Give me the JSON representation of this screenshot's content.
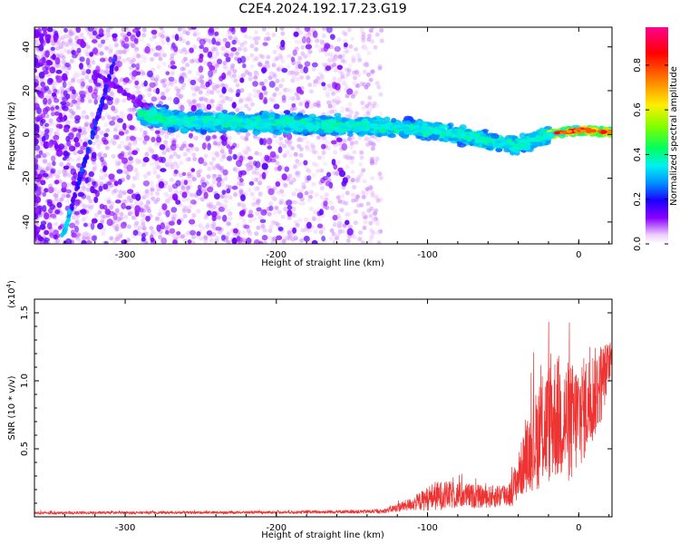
{
  "title": "C2E4.2024.192.17.23.G19",
  "chart_data": [
    {
      "type": "heatmap",
      "xlabel": "Height of straight line (km)",
      "ylabel": "Frequency (Hz)",
      "xlim": [
        -360,
        22
      ],
      "ylim": [
        -50,
        49
      ],
      "xticks": [
        -300,
        -200,
        -100,
        0
      ],
      "yticks": [
        -40,
        -20,
        0,
        20,
        40
      ],
      "colorbar": {
        "label": "Normalized spectral amplitude",
        "range": [
          0,
          0.97
        ],
        "ticks": [
          0.0,
          0.2,
          0.4,
          0.6,
          0.8
        ]
      },
      "features": {
        "diagonal_ridge": {
          "x_start": -341,
          "y_start": -46,
          "x_end": -307,
          "y_end": 34
        },
        "secondary_diagonal": {
          "x_start": -320,
          "y_start": 28,
          "x_end": -285,
          "y_end": 12
        },
        "main_ridge": [
          {
            "x": -290,
            "y": 9
          },
          {
            "x": -260,
            "y": 6
          },
          {
            "x": -200,
            "y": 5
          },
          {
            "x": -150,
            "y": 4
          },
          {
            "x": -110,
            "y": 3
          },
          {
            "x": -80,
            "y": 0
          },
          {
            "x": -60,
            "y": -3
          },
          {
            "x": -40,
            "y": -5
          },
          {
            "x": -20,
            "y": 0
          },
          {
            "x": 0,
            "y": 2
          },
          {
            "x": 22,
            "y": 1
          }
        ],
        "noise_region_x_max": -130
      }
    },
    {
      "type": "line",
      "xlabel": "Height of straight line (km)",
      "ylabel": "SNR (10 * v/v)",
      "multiplier": "(x10",
      "multiplier_exp": "4",
      "xlim": [
        -360,
        22
      ],
      "ylim": [
        0,
        1.6
      ],
      "xticks": [
        -300,
        -200,
        -100,
        0
      ],
      "yticks": [
        0.5,
        1.0,
        1.5
      ],
      "series": [
        {
          "color": "#ee3333",
          "envelope": [
            {
              "x": -360,
              "base": 0.025,
              "amp": 0.02
            },
            {
              "x": -200,
              "base": 0.03,
              "amp": 0.02
            },
            {
              "x": -130,
              "base": 0.035,
              "amp": 0.03
            },
            {
              "x": -110,
              "base": 0.08,
              "amp": 0.1
            },
            {
              "x": -95,
              "base": 0.12,
              "amp": 0.22
            },
            {
              "x": -80,
              "base": 0.13,
              "amp": 0.2
            },
            {
              "x": -60,
              "base": 0.12,
              "amp": 0.16
            },
            {
              "x": -45,
              "base": 0.14,
              "amp": 0.2
            },
            {
              "x": -35,
              "base": 0.35,
              "amp": 0.5
            },
            {
              "x": -25,
              "base": 0.5,
              "amp": 0.85
            },
            {
              "x": -15,
              "base": 0.6,
              "amp": 0.95
            },
            {
              "x": -5,
              "base": 0.55,
              "amp": 0.9
            },
            {
              "x": 5,
              "base": 0.7,
              "amp": 0.75
            },
            {
              "x": 15,
              "base": 0.9,
              "amp": 0.6
            },
            {
              "x": 22,
              "base": 1.15,
              "amp": 0.2
            }
          ]
        }
      ]
    }
  ]
}
